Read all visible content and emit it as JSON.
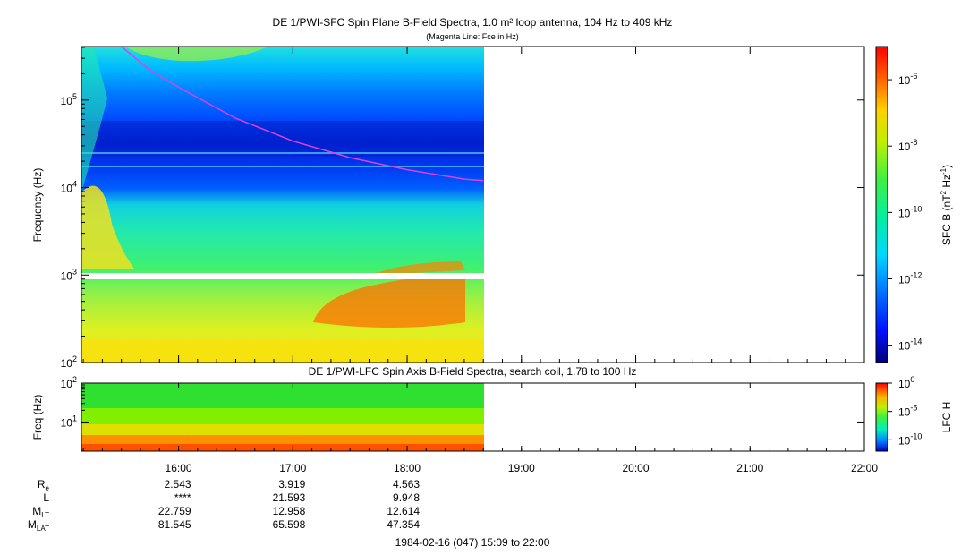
{
  "chart_data": [
    {
      "type": "heatmap",
      "title": "DE 1/PWI-SFC  Spin Plane B-Field Spectra, 1.0 m² loop antenna, 104 Hz to 409 kHz",
      "subtitle": "(Magenta Line: Fce in Hz)",
      "ylabel": "Frequency (Hz)",
      "yscale": "log",
      "ylim": [
        100,
        409000
      ],
      "yticks": [
        {
          "value": 100,
          "label": "10^2"
        },
        {
          "value": 1000,
          "label": "10^3"
        },
        {
          "value": 10000,
          "label": "10^4"
        },
        {
          "value": 100000,
          "label": "10^5"
        }
      ],
      "colorbar": {
        "label": "SFC B (nT^2 Hz^-1)",
        "scale": "log",
        "range": [
          3e-15,
          1e-05
        ],
        "ticks": [
          {
            "value": 1e-06,
            "label": "10^-6"
          },
          {
            "value": 1e-08,
            "label": "10^-8"
          },
          {
            "value": 1e-10,
            "label": "10^-10"
          },
          {
            "value": 1e-12,
            "label": "10^-12"
          },
          {
            "value": 1e-14,
            "label": "10^-14"
          }
        ]
      },
      "data_end": "18:40",
      "fce_line": {
        "color": "#e040e0",
        "points": [
          {
            "time": "15:30",
            "freq": 409000
          },
          {
            "time": "15:45",
            "freq": 220000
          },
          {
            "time": "16:00",
            "freq": 140000
          },
          {
            "time": "16:30",
            "freq": 62000
          },
          {
            "time": "17:00",
            "freq": 34000
          },
          {
            "time": "17:30",
            "freq": 22000
          },
          {
            "time": "18:00",
            "freq": 16000
          },
          {
            "time": "18:30",
            "freq": 12500
          },
          {
            "time": "18:40",
            "freq": 12000
          }
        ]
      }
    },
    {
      "type": "heatmap",
      "title": "DE 1/PWI-LFC  Spin Axis B-Field Spectra, search coil, 1.78 to 100 Hz",
      "ylabel": "Freq (Hz)",
      "yscale": "log",
      "ylim": [
        1.78,
        100
      ],
      "yticks": [
        {
          "value": 10,
          "label": "10^1"
        },
        {
          "value": 100,
          "label": "10^2"
        }
      ],
      "colorbar": {
        "label": "LFC H",
        "scale": "log",
        "range": [
          1e-12,
          1
        ],
        "ticks": [
          {
            "value": 1,
            "label": "10^0"
          },
          {
            "value": 1e-05,
            "label": "10^-5"
          },
          {
            "value": 1e-10,
            "label": "10^-10"
          }
        ]
      },
      "data_end": "18:40"
    }
  ],
  "time_axis": {
    "start": "15:09",
    "end": "22:00",
    "ticks": [
      "16:00",
      "17:00",
      "18:00",
      "19:00",
      "20:00",
      "21:00",
      "22:00"
    ],
    "date_label": "1984-02-16 (047) 15:09 to 22:00"
  },
  "ephemeris": {
    "rows": [
      {
        "label": "R",
        "sub": "e",
        "values": [
          "2.543",
          "3.919",
          "4.563"
        ]
      },
      {
        "label": "L",
        "sub": "",
        "values": [
          "****",
          "21.593",
          "9.948"
        ]
      },
      {
        "label": "M",
        "sub": "LT",
        "values": [
          "22.759",
          "12.958",
          "12.614"
        ]
      },
      {
        "label": "M",
        "sub": "LAT",
        "values": [
          "81.545",
          "65.598",
          "47.354"
        ]
      }
    ]
  }
}
